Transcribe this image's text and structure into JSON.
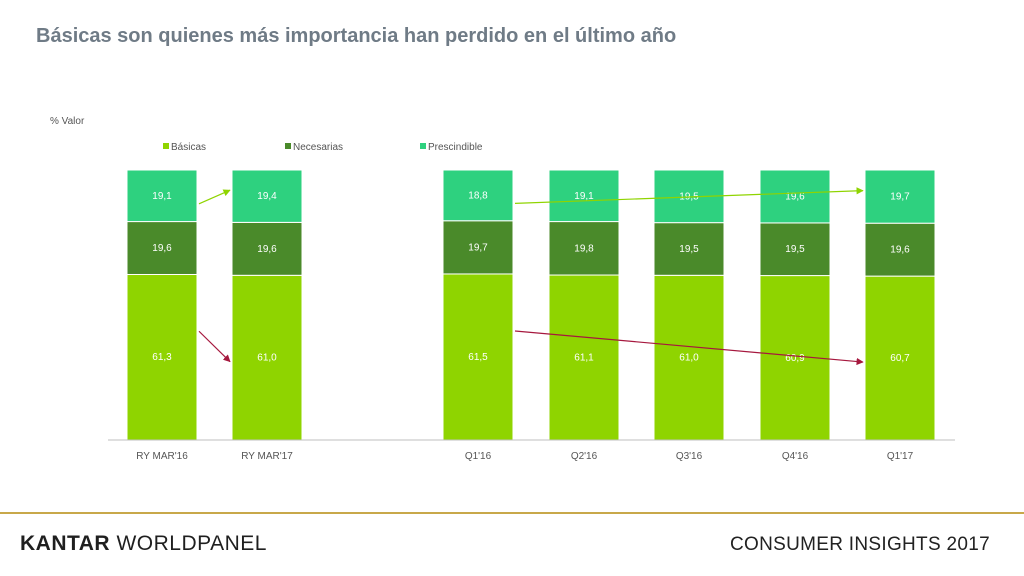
{
  "title": "Básicas son quienes más importancia han perdido en el último año",
  "footer": {
    "brand_main": "KANTAR",
    "brand_sub": "WORLDPANEL",
    "right_text": "CONSUMER INSIGHTS",
    "year": "2017"
  },
  "colors": {
    "basicas": "#8fd400",
    "necesarias": "#4a8a2a",
    "prescindible": "#2ed17f",
    "title": "#6f7b86",
    "up_arrow": "#8fd400",
    "down_arrow": "#a6183e",
    "footer_line": "#c8a84a"
  },
  "chart_data": {
    "type": "bar",
    "stacked": true,
    "ylabel": "% Valor",
    "ylim": [
      0,
      100
    ],
    "categories": [
      "RY MAR'16",
      "RY MAR'17",
      "Q1'16",
      "Q2'16",
      "Q3'16",
      "Q4'16",
      "Q1'17"
    ],
    "series": [
      {
        "name": "Básicas",
        "values": [
          61.3,
          61.0,
          61.5,
          61.1,
          61.0,
          60.9,
          60.7
        ],
        "labels": [
          "61,3",
          "61,0",
          "61,5",
          "61,1",
          "61,0",
          "60,9",
          "60,7"
        ]
      },
      {
        "name": "Necesarias",
        "values": [
          19.6,
          19.6,
          19.7,
          19.8,
          19.5,
          19.5,
          19.6
        ],
        "labels": [
          "19,6",
          "19,6",
          "19,7",
          "19,8",
          "19,5",
          "19,5",
          "19,6"
        ]
      },
      {
        "name": "Prescindible",
        "values": [
          19.1,
          19.4,
          18.8,
          19.1,
          19.5,
          19.6,
          19.7
        ],
        "labels": [
          "19,1",
          "19,4",
          "18,8",
          "19,1",
          "19,5",
          "19,6",
          "19,7"
        ]
      }
    ],
    "legend": "top-left",
    "annotations": [
      {
        "type": "trend-arrow",
        "direction": "up",
        "from": "RY MAR'16",
        "to": "RY MAR'17",
        "series": "Prescindible"
      },
      {
        "type": "trend-arrow",
        "direction": "down",
        "from": "RY MAR'16",
        "to": "RY MAR'17",
        "series": "Básicas"
      },
      {
        "type": "trend-arrow",
        "direction": "up",
        "from": "Q1'16",
        "to": "Q1'17",
        "series": "Prescindible"
      },
      {
        "type": "trend-arrow",
        "direction": "down",
        "from": "Q1'16",
        "to": "Q1'17",
        "series": "Básicas"
      }
    ]
  }
}
